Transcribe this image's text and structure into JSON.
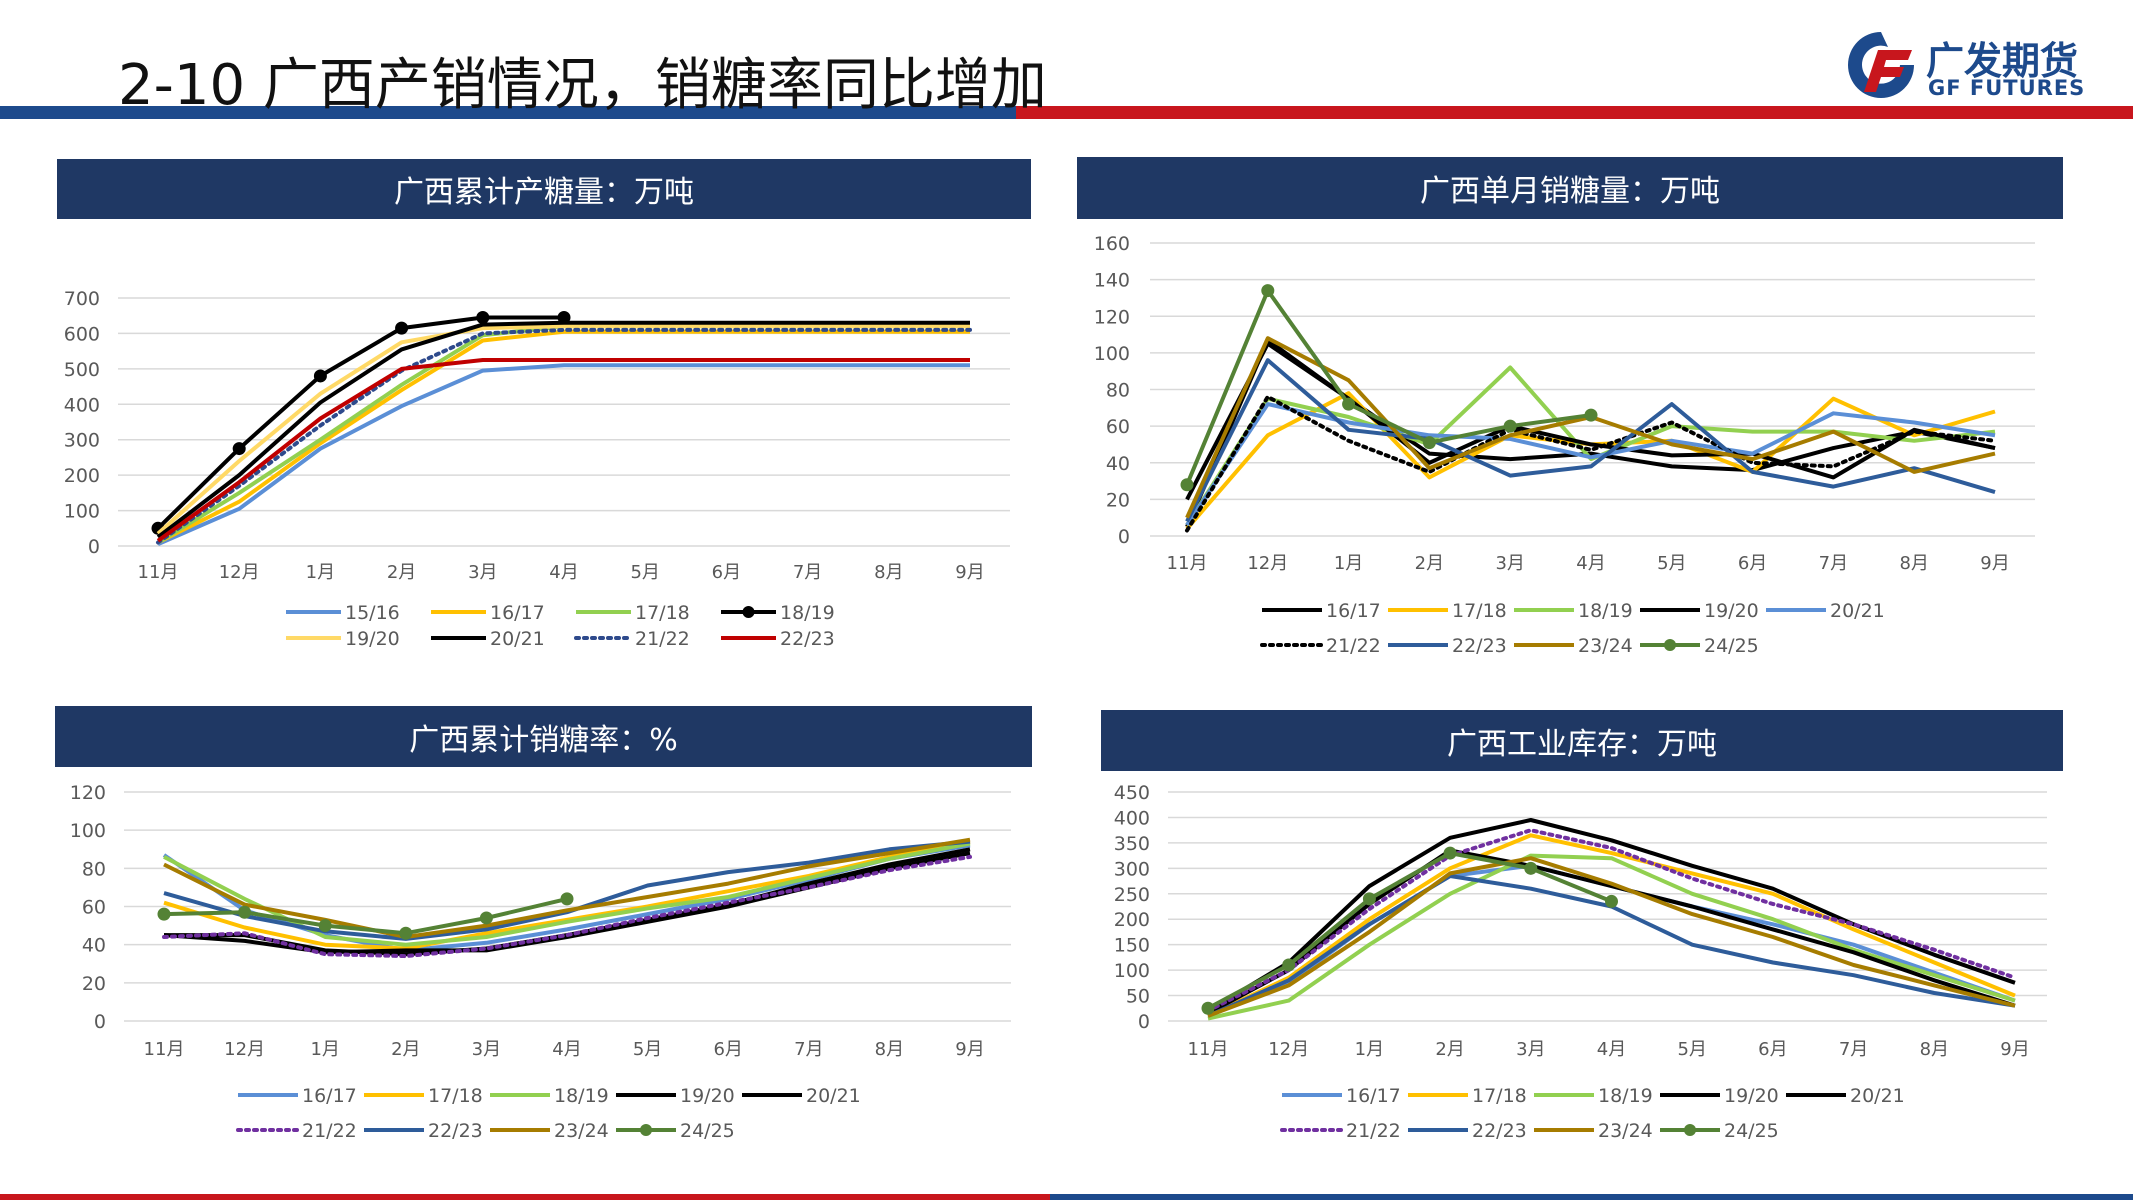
{
  "page": {
    "title": "2-10 广西产销情况，销糖率同比增加",
    "logo_cn": "广发期货",
    "logo_en": "GF FUTURES"
  },
  "colors": {
    "blue_bar": "#1d4a8c",
    "red_bar": "#c8161d",
    "header_bg": "#1f3864"
  },
  "chart_data": [
    {
      "id": "chart1",
      "type": "line",
      "title": "广西累计产糖量：万吨",
      "categories": [
        "11月",
        "12月",
        "1月",
        "2月",
        "3月",
        "4月",
        "5月",
        "6月",
        "7月",
        "8月",
        "9月"
      ],
      "yticks": [
        0,
        100,
        200,
        300,
        400,
        500,
        600,
        700
      ],
      "ylim": [
        0,
        700
      ],
      "grid": true,
      "legend": "bottom",
      "series": [
        {
          "name": "15/16",
          "color": "#5b8fd6",
          "dash": false,
          "marker": false,
          "values": [
            5,
            105,
            275,
            395,
            495,
            510,
            510,
            510,
            510,
            510,
            510
          ]
        },
        {
          "name": "16/17",
          "color": "#ffc000",
          "dash": false,
          "marker": false,
          "values": [
            10,
            125,
            290,
            440,
            580,
            605,
            605,
            605,
            605,
            605,
            605
          ]
        },
        {
          "name": "17/18",
          "color": "#92d050",
          "dash": false,
          "marker": false,
          "values": [
            10,
            150,
            300,
            455,
            595,
            620,
            620,
            620,
            620,
            620,
            620
          ]
        },
        {
          "name": "18/19",
          "color": "#000000",
          "dash": false,
          "marker": true,
          "values": [
            50,
            275,
            480,
            615,
            645,
            645,
            null,
            null,
            null,
            null,
            null
          ]
        },
        {
          "name": "19/20",
          "color": "#ffd966",
          "dash": false,
          "marker": false,
          "values": [
            35,
            240,
            430,
            575,
            615,
            620,
            620,
            620,
            620,
            620,
            620
          ]
        },
        {
          "name": "20/21",
          "color": "#000000",
          "dash": false,
          "marker": false,
          "values": [
            25,
            200,
            405,
            555,
            625,
            630,
            630,
            630,
            630,
            630,
            630
          ]
        },
        {
          "name": "21/22",
          "color": "#2e4a8c",
          "dash": true,
          "marker": false,
          "values": [
            10,
            170,
            340,
            495,
            600,
            610,
            610,
            610,
            610,
            610,
            610
          ]
        },
        {
          "name": "22/23",
          "color": "#c00000",
          "dash": false,
          "marker": false,
          "values": [
            15,
            180,
            360,
            500,
            525,
            525,
            525,
            525,
            525,
            525,
            525
          ]
        }
      ]
    },
    {
      "id": "chart2",
      "type": "line",
      "title": "广西单月销糖量：万吨",
      "categories": [
        "11月",
        "12月",
        "1月",
        "2月",
        "3月",
        "4月",
        "5月",
        "6月",
        "7月",
        "8月",
        "9月"
      ],
      "yticks": [
        0,
        20,
        40,
        60,
        80,
        100,
        120,
        140,
        160
      ],
      "ylim": [
        0,
        160
      ],
      "grid": true,
      "legend": "bottom",
      "series": [
        {
          "name": "16/17",
          "color": "#000000",
          "dash": false,
          "marker": false,
          "values": [
            5,
            107,
            75,
            45,
            42,
            45,
            38,
            36,
            48,
            57,
            48
          ]
        },
        {
          "name": "17/18",
          "color": "#ffc000",
          "dash": false,
          "marker": false,
          "values": [
            4,
            55,
            78,
            32,
            55,
            50,
            52,
            35,
            75,
            55,
            68
          ]
        },
        {
          "name": "18/19",
          "color": "#92d050",
          "dash": false,
          "marker": false,
          "values": [
            6,
            75,
            65,
            50,
            92,
            42,
            60,
            57,
            57,
            52,
            57
          ]
        },
        {
          "name": "19/20",
          "color": "#000000",
          "dash": false,
          "marker": false,
          "values": [
            20,
            105,
            75,
            40,
            60,
            50,
            44,
            45,
            32,
            58,
            48
          ]
        },
        {
          "name": "20/21",
          "color": "#5b8fd6",
          "dash": false,
          "marker": false,
          "values": [
            6,
            72,
            62,
            55,
            53,
            43,
            52,
            45,
            67,
            62,
            55
          ]
        },
        {
          "name": "21/22",
          "color": "#000000",
          "dash": true,
          "marker": false,
          "values": [
            3,
            76,
            52,
            35,
            58,
            47,
            62,
            40,
            38,
            57,
            52
          ]
        },
        {
          "name": "22/23",
          "color": "#2e5c9a",
          "dash": false,
          "marker": false,
          "values": [
            8,
            96,
            58,
            53,
            33,
            38,
            72,
            35,
            27,
            37,
            24
          ]
        },
        {
          "name": "23/24",
          "color": "#a67c00",
          "dash": false,
          "marker": false,
          "values": [
            10,
            108,
            85,
            37,
            55,
            65,
            50,
            42,
            57,
            35,
            45
          ]
        },
        {
          "name": "24/25",
          "color": "#548235",
          "dash": false,
          "marker": true,
          "values": [
            28,
            134,
            72,
            51,
            60,
            66,
            null,
            null,
            null,
            null,
            null
          ]
        }
      ]
    },
    {
      "id": "chart3",
      "type": "line",
      "title": "广西累计销糖率：%",
      "categories": [
        "11月",
        "12月",
        "1月",
        "2月",
        "3月",
        "4月",
        "5月",
        "6月",
        "7月",
        "8月",
        "9月"
      ],
      "yticks": [
        0,
        20,
        40,
        60,
        80,
        100,
        120
      ],
      "ylim": [
        0,
        120
      ],
      "grid": true,
      "legend": "bottom",
      "series": [
        {
          "name": "16/17",
          "color": "#5b8fd6",
          "dash": false,
          "marker": false,
          "values": [
            87,
            58,
            45,
            37,
            41,
            48,
            56,
            64,
            74,
            85,
            92
          ]
        },
        {
          "name": "17/18",
          "color": "#ffc000",
          "dash": false,
          "marker": false,
          "values": [
            62,
            49,
            40,
            38,
            46,
            53,
            60,
            68,
            76,
            86,
            94
          ]
        },
        {
          "name": "18/19",
          "color": "#92d050",
          "dash": false,
          "marker": false,
          "values": [
            86,
            64,
            44,
            40,
            44,
            52,
            59,
            65,
            75,
            85,
            93
          ]
        },
        {
          "name": "19/20",
          "color": "#000000",
          "dash": false,
          "marker": false,
          "values": [
            45,
            45,
            37,
            35,
            38,
            45,
            53,
            61,
            72,
            82,
            90
          ]
        },
        {
          "name": "20/21",
          "color": "#000000",
          "dash": false,
          "marker": false,
          "values": [
            45,
            42,
            36,
            37,
            37,
            44,
            52,
            60,
            70,
            80,
            88
          ]
        },
        {
          "name": "21/22",
          "color": "#7030a0",
          "dash": true,
          "marker": false,
          "values": [
            44,
            46,
            35,
            34,
            38,
            45,
            54,
            62,
            70,
            79,
            86
          ]
        },
        {
          "name": "22/23",
          "color": "#2e5c9a",
          "dash": false,
          "marker": false,
          "values": [
            67,
            55,
            47,
            43,
            48,
            57,
            71,
            78,
            83,
            90,
            94
          ]
        },
        {
          "name": "23/24",
          "color": "#a67c00",
          "dash": false,
          "marker": false,
          "values": [
            82,
            61,
            53,
            44,
            50,
            58,
            65,
            72,
            81,
            88,
            95
          ]
        },
        {
          "name": "24/25",
          "color": "#548235",
          "dash": false,
          "marker": true,
          "values": [
            56,
            57,
            50,
            46,
            54,
            64,
            null,
            null,
            null,
            null,
            null
          ]
        }
      ]
    },
    {
      "id": "chart4",
      "type": "line",
      "title": "广西工业库存：万吨",
      "categories": [
        "11月",
        "12月",
        "1月",
        "2月",
        "3月",
        "4月",
        "5月",
        "6月",
        "7月",
        "8月",
        "9月"
      ],
      "yticks": [
        0,
        50,
        100,
        150,
        200,
        250,
        300,
        350,
        400,
        450
      ],
      "ylim": [
        0,
        450
      ],
      "grid": true,
      "legend": "bottom",
      "series": [
        {
          "name": "16/17",
          "color": "#5b8fd6",
          "dash": false,
          "marker": false,
          "values": [
            10,
            75,
            190,
            285,
            305,
            265,
            225,
            190,
            150,
            95,
            40
          ]
        },
        {
          "name": "17/18",
          "color": "#ffc000",
          "dash": false,
          "marker": false,
          "values": [
            10,
            85,
            200,
            300,
            365,
            330,
            290,
            250,
            180,
            115,
            50
          ]
        },
        {
          "name": "18/19",
          "color": "#92d050",
          "dash": false,
          "marker": false,
          "values": [
            5,
            40,
            150,
            250,
            325,
            320,
            250,
            200,
            140,
            90,
            40
          ]
        },
        {
          "name": "19/20",
          "color": "#000000",
          "dash": false,
          "marker": false,
          "values": [
            20,
            115,
            265,
            360,
            395,
            355,
            305,
            260,
            190,
            130,
            75
          ]
        },
        {
          "name": "20/21",
          "color": "#000000",
          "dash": false,
          "marker": false,
          "values": [
            15,
            100,
            230,
            335,
            305,
            265,
            225,
            180,
            135,
            80,
            30
          ]
        },
        {
          "name": "21/22",
          "color": "#7030a0",
          "dash": true,
          "marker": false,
          "values": [
            20,
            100,
            220,
            325,
            375,
            340,
            280,
            230,
            190,
            140,
            85
          ]
        },
        {
          "name": "22/23",
          "color": "#2e5c9a",
          "dash": false,
          "marker": false,
          "values": [
            10,
            80,
            190,
            285,
            260,
            225,
            150,
            115,
            90,
            55,
            30
          ]
        },
        {
          "name": "23/24",
          "color": "#a67c00",
          "dash": false,
          "marker": false,
          "values": [
            10,
            70,
            175,
            290,
            320,
            270,
            210,
            165,
            110,
            70,
            30
          ]
        },
        {
          "name": "24/25",
          "color": "#548235",
          "dash": false,
          "marker": true,
          "values": [
            25,
            110,
            240,
            330,
            300,
            235,
            null,
            null,
            null,
            null,
            null
          ]
        }
      ]
    }
  ]
}
